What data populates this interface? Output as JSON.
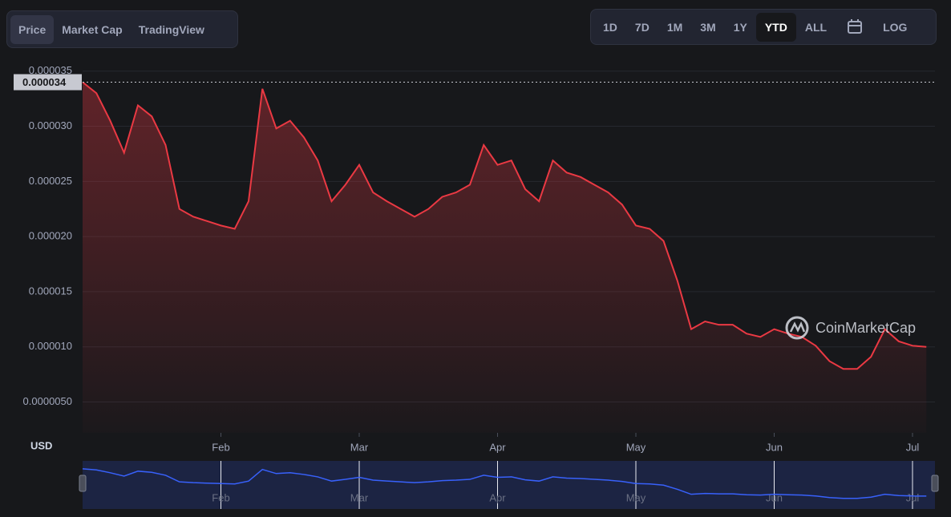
{
  "controls": {
    "tabs": [
      "Price",
      "Market Cap",
      "TradingView"
    ],
    "ranges": [
      "1D",
      "7D",
      "1M",
      "3M",
      "1Y",
      "YTD",
      "ALL"
    ],
    "log_label": "LOG"
  },
  "chart_data": {
    "type": "line",
    "currency": "USD",
    "watermark": "CoinMarketCap",
    "current_price": 3.4e-05,
    "colors": {
      "down": "#ea3943",
      "up": "#16c784",
      "navigator": "#3861fb"
    },
    "categories": [
      null,
      null,
      null,
      null,
      null,
      null,
      null,
      null,
      null,
      null,
      "Feb",
      null,
      null,
      null,
      null,
      null,
      null,
      null,
      null,
      null,
      "Mar",
      null,
      null,
      null,
      null,
      null,
      null,
      null,
      null,
      null,
      "Apr",
      null,
      null,
      null,
      null,
      null,
      null,
      null,
      null,
      null,
      "May",
      null,
      null,
      null,
      null,
      null,
      null,
      null,
      null,
      null,
      "Jun",
      null,
      null,
      null,
      null,
      null,
      null,
      null,
      null,
      null,
      "Jul",
      null
    ],
    "values": [
      3.4e-05,
      3.3e-05,
      3.05e-05,
      2.76e-05,
      3.19e-05,
      3.09e-05,
      2.83e-05,
      2.25e-05,
      2.18e-05,
      2.14e-05,
      2.1e-05,
      2.07e-05,
      2.32e-05,
      3.34e-05,
      2.98e-05,
      3.05e-05,
      2.9e-05,
      2.69e-05,
      2.32e-05,
      2.47e-05,
      2.65e-05,
      2.4e-05,
      2.32e-05,
      2.25e-05,
      2.18e-05,
      2.25e-05,
      2.36e-05,
      2.4e-05,
      2.47e-05,
      2.83e-05,
      2.65e-05,
      2.69e-05,
      2.43e-05,
      2.32e-05,
      2.69e-05,
      2.58e-05,
      2.54e-05,
      2.47e-05,
      2.4e-05,
      2.29e-05,
      2.1e-05,
      2.07e-05,
      1.96e-05,
      1.6e-05,
      1.16e-05,
      1.23e-05,
      1.2e-05,
      1.2e-05,
      1.12e-05,
      1.09e-05,
      1.16e-05,
      1.12e-05,
      1.09e-05,
      1.01e-05,
      8.7e-06,
      8e-06,
      8e-06,
      9.1e-06,
      1.16e-05,
      1.05e-05,
      1.01e-05,
      1e-05
    ],
    "ylim": [
      2.2e-06,
      3.6e-05
    ],
    "yticks": [
      {
        "value": 5e-06,
        "label": "0.0000050"
      },
      {
        "value": 1e-05,
        "label": "0.000010"
      },
      1.5e-05,
      {
        "value": 2e-05,
        "label": "0.000020"
      },
      2.5e-05,
      {
        "value": 3e-05,
        "label": "0.000030"
      },
      3.5e-05
    ],
    "grid": true
  }
}
